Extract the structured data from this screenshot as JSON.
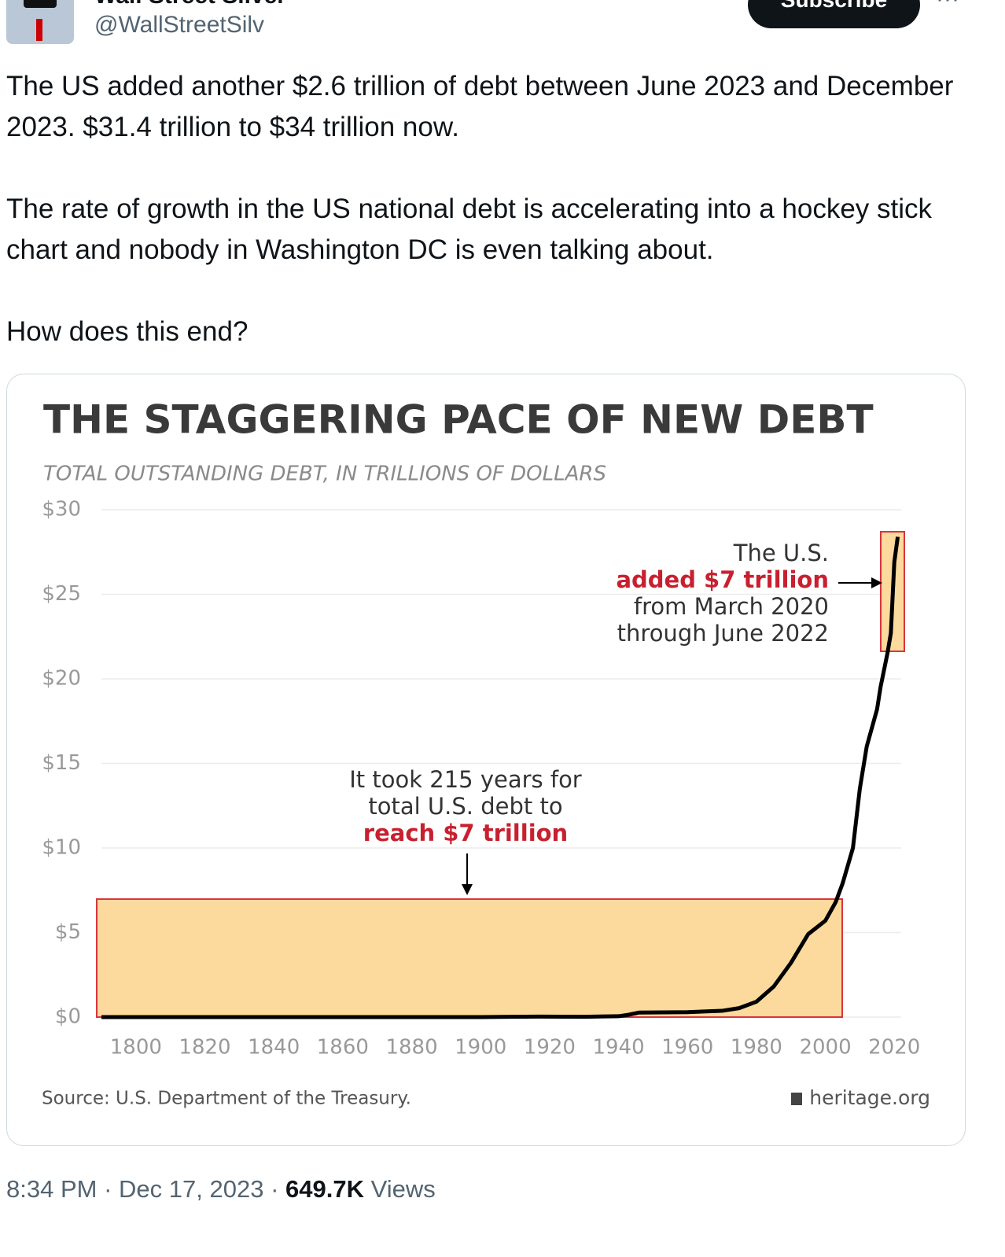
{
  "user": {
    "name": "Wall Street Silver",
    "handle": "@WallStreetSilv",
    "button": "Subscribe",
    "more": "···"
  },
  "post": {
    "paragraphs": [
      "The US added another $2.6 trillion of debt between June 2023 and December 2023. $31.4 trillion to $34 trillion now.",
      "The rate of growth in the US national debt is accelerating into a hockey stick chart and nobody in Washington DC is even talking about.",
      "How does this end?"
    ]
  },
  "chart_data": {
    "type": "line",
    "title": "THE STAGGERING PACE OF NEW DEBT",
    "subtitle": "TOTAL OUTSTANDING DEBT, IN TRILLIONS OF DOLLARS",
    "x": [
      1790,
      1900,
      1917,
      1930,
      1940,
      1943,
      1946,
      1960,
      1970,
      1975,
      1980,
      1985,
      1990,
      1995,
      2000,
      2003,
      2005,
      2008,
      2010,
      2012,
      2015,
      2016,
      2018,
      2019,
      2020,
      2021
    ],
    "series": [
      {
        "name": "Total outstanding debt",
        "color": "#000000",
        "values": [
          0,
          0,
          0.03,
          0.02,
          0.05,
          0.14,
          0.27,
          0.29,
          0.37,
          0.53,
          0.91,
          1.8,
          3.2,
          4.9,
          5.7,
          6.8,
          7.9,
          10,
          13.5,
          16,
          18.2,
          19.5,
          21.5,
          22.7,
          26.9,
          28.4
        ]
      }
    ],
    "xlim": [
      1790,
      2022
    ],
    "xticks": [
      1800,
      1820,
      1840,
      1860,
      1880,
      1900,
      1920,
      1940,
      1960,
      1980,
      2000,
      2020
    ],
    "ylim": [
      0,
      30
    ],
    "yticks": [
      {
        "value": 0,
        "label": "$0"
      },
      {
        "value": 5,
        "label": "$5"
      },
      {
        "value": 10,
        "label": "$10"
      },
      {
        "value": 15,
        "label": "$15"
      },
      {
        "value": 20,
        "label": "$20"
      },
      {
        "value": 25,
        "label": "$25"
      },
      {
        "value": 30,
        "label": "$30"
      }
    ],
    "grid": true,
    "annotations": {
      "recent": [
        "The U.S.",
        "added $7 trillion",
        "from March 2020",
        "through June 2022"
      ],
      "history": [
        "It took 215 years for",
        "total U.S. debt to",
        "reach $7 trillion"
      ]
    },
    "source": "Source: U.S. Department of the Treasury.",
    "credit": "heritage.org"
  },
  "footer": {
    "time": "8:34 PM",
    "separator": "·",
    "date": "Dec 17, 2023",
    "views": "649.7K",
    "views_label": "Views"
  }
}
